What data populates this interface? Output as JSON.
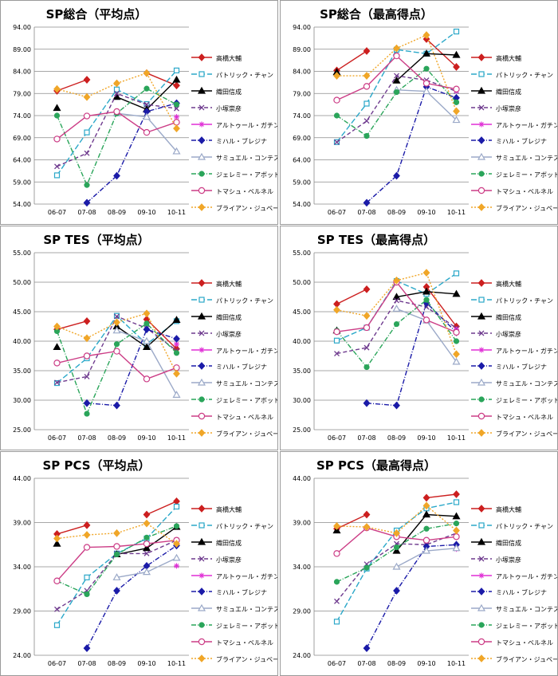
{
  "categories": [
    "06-07",
    "07-08",
    "08-09",
    "09-10",
    "10-11"
  ],
  "series_style": [
    {
      "name": "高橋大輔",
      "color": "#CC1F1F",
      "dash": "",
      "marker": "diamond",
      "fill": true
    },
    {
      "name": "パトリック・チャン",
      "color": "#2BA8C9",
      "dash": "7,3",
      "marker": "square",
      "fill": false
    },
    {
      "name": "織田信成",
      "color": "#000000",
      "dash": "",
      "marker": "triangle",
      "fill": true
    },
    {
      "name": "小塚崇彦",
      "color": "#6E3A8E",
      "dash": "5,3",
      "marker": "x",
      "fill": false
    },
    {
      "name": "アルトゥール・ガチンスキー",
      "color": "#E02FD6",
      "dash": "",
      "marker": "star",
      "fill": false
    },
    {
      "name": "ミハル・ブレジナ",
      "color": "#1B1BA8",
      "dash": "6,2,1,2",
      "marker": "diamond",
      "fill": true
    },
    {
      "name": "サミュエル・コンテスティ",
      "color": "#9BA9C8",
      "dash": "",
      "marker": "triangle",
      "fill": false
    },
    {
      "name": "ジェレミー・アボット",
      "color": "#2AA55A",
      "dash": "6,2,1,2",
      "marker": "circle",
      "fill": true
    },
    {
      "name": "トマシュ・ベルネル",
      "color": "#CC3D86",
      "dash": "",
      "marker": "circle",
      "fill": false
    },
    {
      "name": "ブライアン・ジュベール",
      "color": "#F0A628",
      "dash": "2,2",
      "marker": "diamond",
      "fill": true
    }
  ],
  "chart_data": [
    {
      "type": "line",
      "title": "SP総合（平均点）",
      "ylim": [
        54,
        94
      ],
      "yticks": [
        "54.00",
        "59.00",
        "64.00",
        "69.00",
        "74.00",
        "79.00",
        "84.00",
        "89.00",
        "94.00"
      ],
      "series": [
        {
          "name": "高橋大輔",
          "values": [
            79.6,
            82.1,
            null,
            83.6,
            80.8
          ]
        },
        {
          "name": "パトリック・チャン",
          "values": [
            60.5,
            70.2,
            79.9,
            76.6,
            84.2
          ]
        },
        {
          "name": "織田信成",
          "values": [
            75.7,
            null,
            78.2,
            75.4,
            82.1
          ]
        },
        {
          "name": "小塚崇彦",
          "values": [
            62.5,
            65.5,
            79.0,
            76.5,
            75.6
          ]
        },
        {
          "name": "アルトゥール・ガチンスキー",
          "values": [
            null,
            null,
            null,
            null,
            73.7
          ]
        },
        {
          "name": "ミハル・ブレジナ",
          "values": [
            null,
            54.3,
            60.4,
            74.9,
            76.8
          ]
        },
        {
          "name": "サミュエル・コンテスティ",
          "values": [
            null,
            null,
            74.5,
            73.7,
            65.9
          ]
        },
        {
          "name": "ジェレミー・アボット",
          "values": [
            74.0,
            58.3,
            74.5,
            80.1,
            76.5
          ]
        },
        {
          "name": "トマシュ・ベルネル",
          "values": [
            68.7,
            73.9,
            74.9,
            70.2,
            72.5
          ]
        },
        {
          "name": "ブライアン・ジュベール",
          "values": [
            80.0,
            78.2,
            81.3,
            83.6,
            71.1
          ]
        }
      ]
    },
    {
      "type": "line",
      "title": "SP総合（最高得点）",
      "ylim": [
        54,
        94
      ],
      "yticks": [
        "54.00",
        "59.00",
        "64.00",
        "69.00",
        "74.00",
        "79.00",
        "84.00",
        "89.00",
        "94.00"
      ],
      "series": [
        {
          "name": "高橋大輔",
          "values": [
            84.2,
            88.6,
            null,
            91.3,
            85.0
          ]
        },
        {
          "name": "パトリック・チャン",
          "values": [
            68.0,
            76.7,
            88.9,
            88.0,
            93.0
          ]
        },
        {
          "name": "織田信成",
          "values": [
            83.8,
            null,
            81.9,
            88.0,
            87.7
          ]
        },
        {
          "name": "小塚崇彦",
          "values": [
            68.0,
            72.8,
            83.0,
            82.0,
            79.5
          ]
        },
        {
          "name": "アルトゥール・ガチンスキー",
          "values": [
            null,
            null,
            null,
            null,
            79.6
          ]
        },
        {
          "name": "ミハル・ブレジナ",
          "values": [
            null,
            54.3,
            60.4,
            80.5,
            78.0
          ]
        },
        {
          "name": "サミュエル・コンテスティ",
          "values": [
            null,
            null,
            79.8,
            79.5,
            73.0
          ]
        },
        {
          "name": "ジェレミー・アボット",
          "values": [
            74.0,
            69.4,
            79.3,
            84.6,
            77.0
          ]
        },
        {
          "name": "トマシュ・ベルネル",
          "values": [
            77.5,
            80.6,
            87.5,
            81.3,
            80.0
          ]
        },
        {
          "name": "ブライアン・ジュベール",
          "values": [
            83.0,
            83.0,
            89.2,
            92.2,
            75.0
          ]
        }
      ]
    },
    {
      "type": "line",
      "title": "SP TES（平均点）",
      "ylim": [
        25,
        55
      ],
      "yticks": [
        "25.00",
        "30.00",
        "35.00",
        "40.00",
        "45.00",
        "50.00",
        "55.00"
      ],
      "series": [
        {
          "name": "高橋大輔",
          "values": [
            42.0,
            43.4,
            null,
            43.7,
            38.7
          ]
        },
        {
          "name": "パトリック・チャン",
          "values": [
            32.9,
            37.1,
            44.3,
            39.5,
            43.4
          ]
        },
        {
          "name": "織田信成",
          "values": [
            39.0,
            null,
            42.5,
            39.0,
            43.6
          ]
        },
        {
          "name": "小塚崇彦",
          "values": [
            33.0,
            34.0,
            44.2,
            42.2,
            38.4
          ]
        },
        {
          "name": "アルトゥール・ガチンスキー",
          "values": [
            null,
            null,
            null,
            null,
            39.5
          ]
        },
        {
          "name": "ミハル・ブレジナ",
          "values": [
            null,
            29.5,
            29.1,
            42.0,
            40.4
          ]
        },
        {
          "name": "サミュエル・コンテスティ",
          "values": [
            null,
            null,
            41.8,
            40.0,
            30.9
          ]
        },
        {
          "name": "ジェレミー・アボット",
          "values": [
            41.7,
            27.7,
            39.5,
            43.0,
            38.0
          ]
        },
        {
          "name": "トマシュ・ベルネル",
          "values": [
            36.3,
            37.5,
            38.3,
            33.6,
            35.5
          ]
        },
        {
          "name": "ブライアン・ジュベール",
          "values": [
            42.5,
            40.5,
            43.2,
            44.7,
            34.5
          ]
        }
      ]
    },
    {
      "type": "line",
      "title": "SP TES（最高得点）",
      "ylim": [
        25,
        55
      ],
      "yticks": [
        "25.00",
        "30.00",
        "35.00",
        "40.00",
        "45.00",
        "50.00",
        "55.00"
      ],
      "series": [
        {
          "name": "高橋大輔",
          "values": [
            46.3,
            48.8,
            null,
            49.2,
            42.5
          ]
        },
        {
          "name": "パトリック・チャン",
          "values": [
            40.1,
            42.3,
            50.2,
            48.0,
            51.5
          ]
        },
        {
          "name": "織田信成",
          "values": [
            41.8,
            null,
            47.5,
            48.4,
            48.0
          ]
        },
        {
          "name": "小塚崇彦",
          "values": [
            37.9,
            38.9,
            46.9,
            45.8,
            42.2
          ]
        },
        {
          "name": "アルトゥール・ガチンスキー",
          "values": [
            null,
            null,
            null,
            null,
            42.0
          ]
        },
        {
          "name": "ミハル・ブレジナ",
          "values": [
            null,
            29.5,
            29.1,
            46.5,
            41.5
          ]
        },
        {
          "name": "サミュエル・コンテスティ",
          "values": [
            null,
            null,
            45.5,
            43.5,
            36.5
          ]
        },
        {
          "name": "ジェレミー・アボット",
          "values": [
            41.8,
            35.6,
            42.9,
            47.0,
            40.0
          ]
        },
        {
          "name": "トマシュ・ベルネル",
          "values": [
            41.6,
            42.3,
            50.0,
            43.6,
            41.5
          ]
        },
        {
          "name": "ブライアン・ジュベール",
          "values": [
            45.3,
            44.3,
            50.3,
            51.6,
            37.8
          ]
        }
      ]
    },
    {
      "type": "line",
      "title": "SP PCS（平均点）",
      "ylim": [
        24,
        44
      ],
      "yticks": [
        "24.00",
        "29.00",
        "34.00",
        "39.00",
        "44.00"
      ],
      "series": [
        {
          "name": "高橋大輔",
          "values": [
            37.7,
            38.7,
            null,
            39.9,
            41.4
          ]
        },
        {
          "name": "パトリック・チャン",
          "values": [
            27.4,
            32.8,
            35.5,
            37.2,
            40.8
          ]
        },
        {
          "name": "織田信成",
          "values": [
            36.6,
            null,
            35.4,
            36.1,
            38.5
          ]
        },
        {
          "name": "小塚崇彦",
          "values": [
            29.2,
            31.3,
            35.5,
            35.5,
            37.0
          ]
        },
        {
          "name": "アルトゥール・ガチンスキー",
          "values": [
            null,
            null,
            null,
            null,
            34.1
          ]
        },
        {
          "name": "ミハル・ブレジナ",
          "values": [
            null,
            24.8,
            31.3,
            34.1,
            36.4
          ]
        },
        {
          "name": "サミュエル・コンテスティ",
          "values": [
            null,
            null,
            32.8,
            33.4,
            35.0
          ]
        },
        {
          "name": "ジェレミー・アボット",
          "values": [
            32.4,
            30.9,
            35.4,
            37.3,
            38.6
          ]
        },
        {
          "name": "トマシュ・ベルネル",
          "values": [
            32.4,
            36.2,
            36.3,
            36.6,
            37.0
          ]
        },
        {
          "name": "ブライアン・ジュベール",
          "values": [
            37.2,
            37.6,
            37.8,
            38.9,
            36.6
          ]
        }
      ]
    },
    {
      "type": "line",
      "title": "SP PCS（最高得点）",
      "ylim": [
        24,
        44
      ],
      "yticks": [
        "24.00",
        "29.00",
        "34.00",
        "39.00",
        "44.00"
      ],
      "series": [
        {
          "name": "高橋大輔",
          "values": [
            38.3,
            39.9,
            null,
            41.8,
            42.2
          ]
        },
        {
          "name": "パトリック・チャン",
          "values": [
            27.8,
            33.8,
            38.1,
            40.6,
            41.3
          ]
        },
        {
          "name": "織田信成",
          "values": [
            38.1,
            null,
            35.8,
            39.9,
            39.7
          ]
        },
        {
          "name": "小塚崇彦",
          "values": [
            30.1,
            34.3,
            36.6,
            36.5,
            37.8
          ]
        },
        {
          "name": "アルトゥール・ガチンスキー",
          "values": [
            null,
            null,
            null,
            null,
            36.0
          ]
        },
        {
          "name": "ミハル・ブレジナ",
          "values": [
            null,
            24.8,
            31.3,
            36.3,
            36.5
          ]
        },
        {
          "name": "サミュエル・コンテスティ",
          "values": [
            null,
            null,
            34.0,
            35.8,
            36.1
          ]
        },
        {
          "name": "ジェレミー・アボット",
          "values": [
            32.3,
            33.9,
            36.2,
            38.3,
            38.9
          ]
        },
        {
          "name": "トマシュ・ベルネル",
          "values": [
            35.5,
            38.4,
            37.4,
            37.0,
            37.4
          ]
        },
        {
          "name": "ブライアン・ジュベール",
          "values": [
            38.6,
            38.5,
            37.8,
            40.9,
            38.1
          ]
        }
      ]
    }
  ]
}
